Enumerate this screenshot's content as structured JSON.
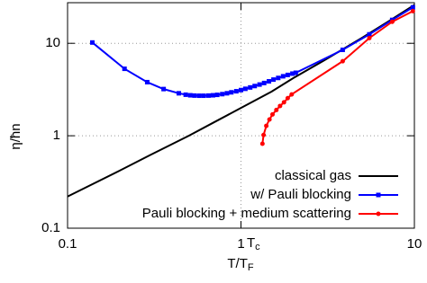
{
  "chart_data": {
    "type": "line",
    "log_x": true,
    "log_y": true,
    "grid": true,
    "legend": "lower-right",
    "xlabel": {
      "text": "T/T",
      "sub": "F"
    },
    "ylabel": "η/ħn",
    "tc_label": {
      "text": "T",
      "sub": "c"
    },
    "xlim": [
      0.1,
      10
    ],
    "ylim": [
      0.1,
      27.5
    ],
    "xticks": [
      0.1,
      1,
      10
    ],
    "yticks": [
      0.1,
      1,
      10
    ],
    "series": [
      {
        "name": "classical gas",
        "color": "#000000",
        "marker": "none",
        "x": [
          0.1,
          0.2,
          0.3,
          0.5,
          0.7,
          1,
          1.5,
          2,
          3,
          5,
          7,
          10
        ],
        "values": [
          0.22,
          0.42,
          0.62,
          1.0,
          1.4,
          2.0,
          3.0,
          4.2,
          6.5,
          11.5,
          17,
          26
        ]
      },
      {
        "name": "w/ Pauli blocking",
        "color": "#0000ff",
        "marker": "square",
        "x": [
          0.139,
          0.213,
          0.288,
          0.358,
          0.438,
          0.48,
          0.51,
          0.54,
          0.575,
          0.61,
          0.65,
          0.69,
          0.73,
          0.78,
          0.83,
          0.88,
          0.94,
          1.0,
          1.06,
          1.13,
          1.2,
          1.28,
          1.36,
          1.45,
          1.54,
          1.64,
          1.75,
          1.86,
          1.98,
          2.07,
          3.86,
          5.5,
          7.45,
          9.8
        ],
        "values": [
          10.2,
          5.3,
          3.8,
          3.2,
          2.88,
          2.78,
          2.74,
          2.72,
          2.71,
          2.71,
          2.72,
          2.74,
          2.77,
          2.82,
          2.88,
          2.95,
          3.03,
          3.12,
          3.22,
          3.33,
          3.45,
          3.58,
          3.72,
          3.88,
          4.05,
          4.22,
          4.4,
          4.55,
          4.7,
          4.8,
          8.5,
          12.5,
          17.9,
          24.5
        ]
      },
      {
        "name": "Pauli blocking + medium scattering",
        "color": "#ff0000",
        "marker": "circle",
        "x": [
          1.33,
          1.35,
          1.4,
          1.46,
          1.52,
          1.6,
          1.68,
          1.77,
          1.86,
          1.96,
          3.86,
          5.5,
          7.45,
          9.8
        ],
        "values": [
          0.82,
          1.02,
          1.28,
          1.5,
          1.7,
          1.9,
          2.1,
          2.3,
          2.55,
          2.8,
          6.4,
          11.4,
          17.1,
          22.3
        ]
      }
    ]
  }
}
